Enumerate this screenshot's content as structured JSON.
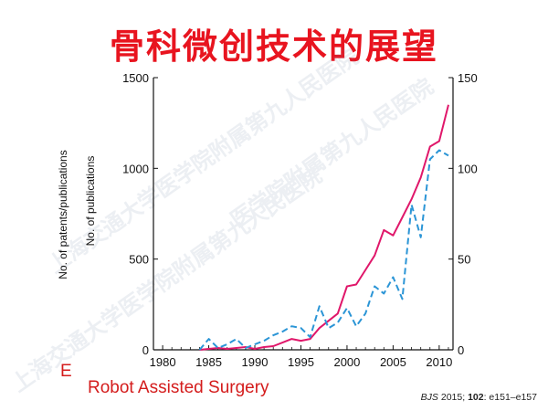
{
  "slide": {
    "title": "骨科微创技术的展望",
    "stray_char": "E",
    "caption": "Robot Assisted  Surgery",
    "citation": {
      "journal": "BJS",
      "year": " 2015; ",
      "volume": "102",
      "pages": ": e151–e157"
    }
  },
  "colors": {
    "title": "#e8141f",
    "caption": "#d41c1c",
    "patents": "#e0176a",
    "publications": "#2b95d6",
    "axis": "#111111"
  },
  "chart_data": {
    "type": "line",
    "x_ticks": [
      "1980",
      "1985",
      "1990",
      "1995",
      "2000",
      "2005",
      "2010"
    ],
    "y_left_ticks": [
      "0",
      "500",
      "1000",
      "1500"
    ],
    "y_right_ticks": [
      "0",
      "50",
      "100",
      "150"
    ],
    "ylabel_left": "No. of patents/publications",
    "ylabel_right_inner": "No. of publications",
    "xlim": [
      1979,
      2011.5
    ],
    "ylim_left": [
      0,
      1500
    ],
    "ylim_right": [
      0,
      150
    ],
    "series": [
      {
        "style": "solid",
        "axis": "left",
        "x": [
          1984,
          1985,
          1986,
          1987,
          1988,
          1989,
          1990,
          1991,
          1992,
          1993,
          1994,
          1995,
          1996,
          1997,
          1998,
          1999,
          2000,
          2001,
          2002,
          2003,
          2004,
          2005,
          2006,
          2007,
          2008,
          2009,
          2010,
          2011
        ],
        "y": [
          0,
          5,
          10,
          5,
          10,
          15,
          5,
          15,
          20,
          40,
          60,
          50,
          60,
          120,
          160,
          200,
          350,
          360,
          440,
          520,
          660,
          630,
          730,
          830,
          950,
          1120,
          1150,
          1350
        ]
      },
      {
        "style": "dashed",
        "axis": "right",
        "x": [
          1984,
          1985,
          1986,
          1987,
          1988,
          1989,
          1990,
          1991,
          1992,
          1993,
          1994,
          1995,
          1996,
          1997,
          1998,
          1999,
          2000,
          2001,
          2002,
          2003,
          2004,
          2005,
          2006,
          2007,
          2008,
          2009,
          2010,
          2011
        ],
        "y": [
          0,
          6,
          1,
          3,
          6,
          1,
          3,
          5,
          8,
          10,
          13,
          12,
          7,
          24,
          12,
          15,
          23,
          13,
          20,
          35,
          31,
          40,
          28,
          80,
          62,
          105,
          110,
          107
        ]
      }
    ]
  }
}
